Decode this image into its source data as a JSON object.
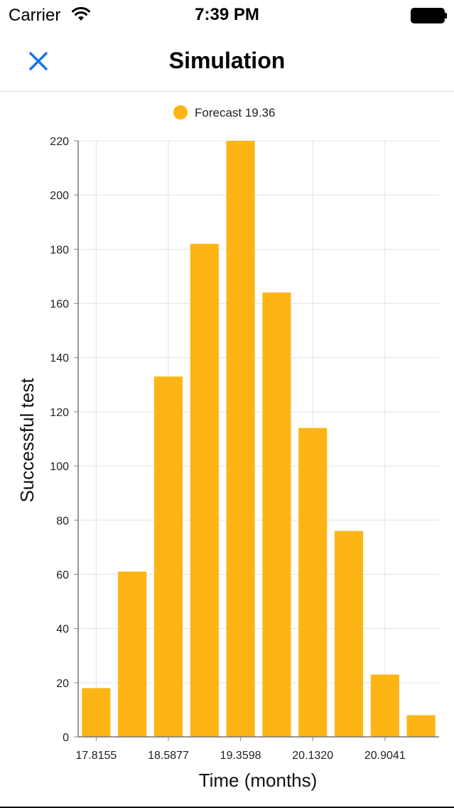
{
  "status_bar": {
    "carrier": "Carrier",
    "time": "7:39 PM",
    "icons": [
      "wifi-icon",
      "battery-icon"
    ]
  },
  "nav": {
    "title": "Simulation",
    "close_icon": "close-icon",
    "accent_color": "#1a73e8"
  },
  "chart_data": {
    "type": "bar",
    "legend": [
      {
        "label": "Forecast 19.36",
        "color": "#FDB515"
      }
    ],
    "legend_position": "top-center",
    "xlabel": "Time (months)",
    "ylabel": "Successful test",
    "ylim": [
      0,
      220
    ],
    "y_ticks": [
      0,
      20,
      40,
      60,
      80,
      100,
      120,
      140,
      160,
      180,
      200,
      220
    ],
    "x_tick_labels": [
      "17.8155",
      "18.5877",
      "19.3598",
      "20.1320",
      "20.9041"
    ],
    "grid": true,
    "bar_color": "#FDB515",
    "series": [
      {
        "values": [
          18,
          61,
          133,
          182,
          220,
          164,
          114,
          76,
          23,
          8
        ]
      }
    ]
  }
}
